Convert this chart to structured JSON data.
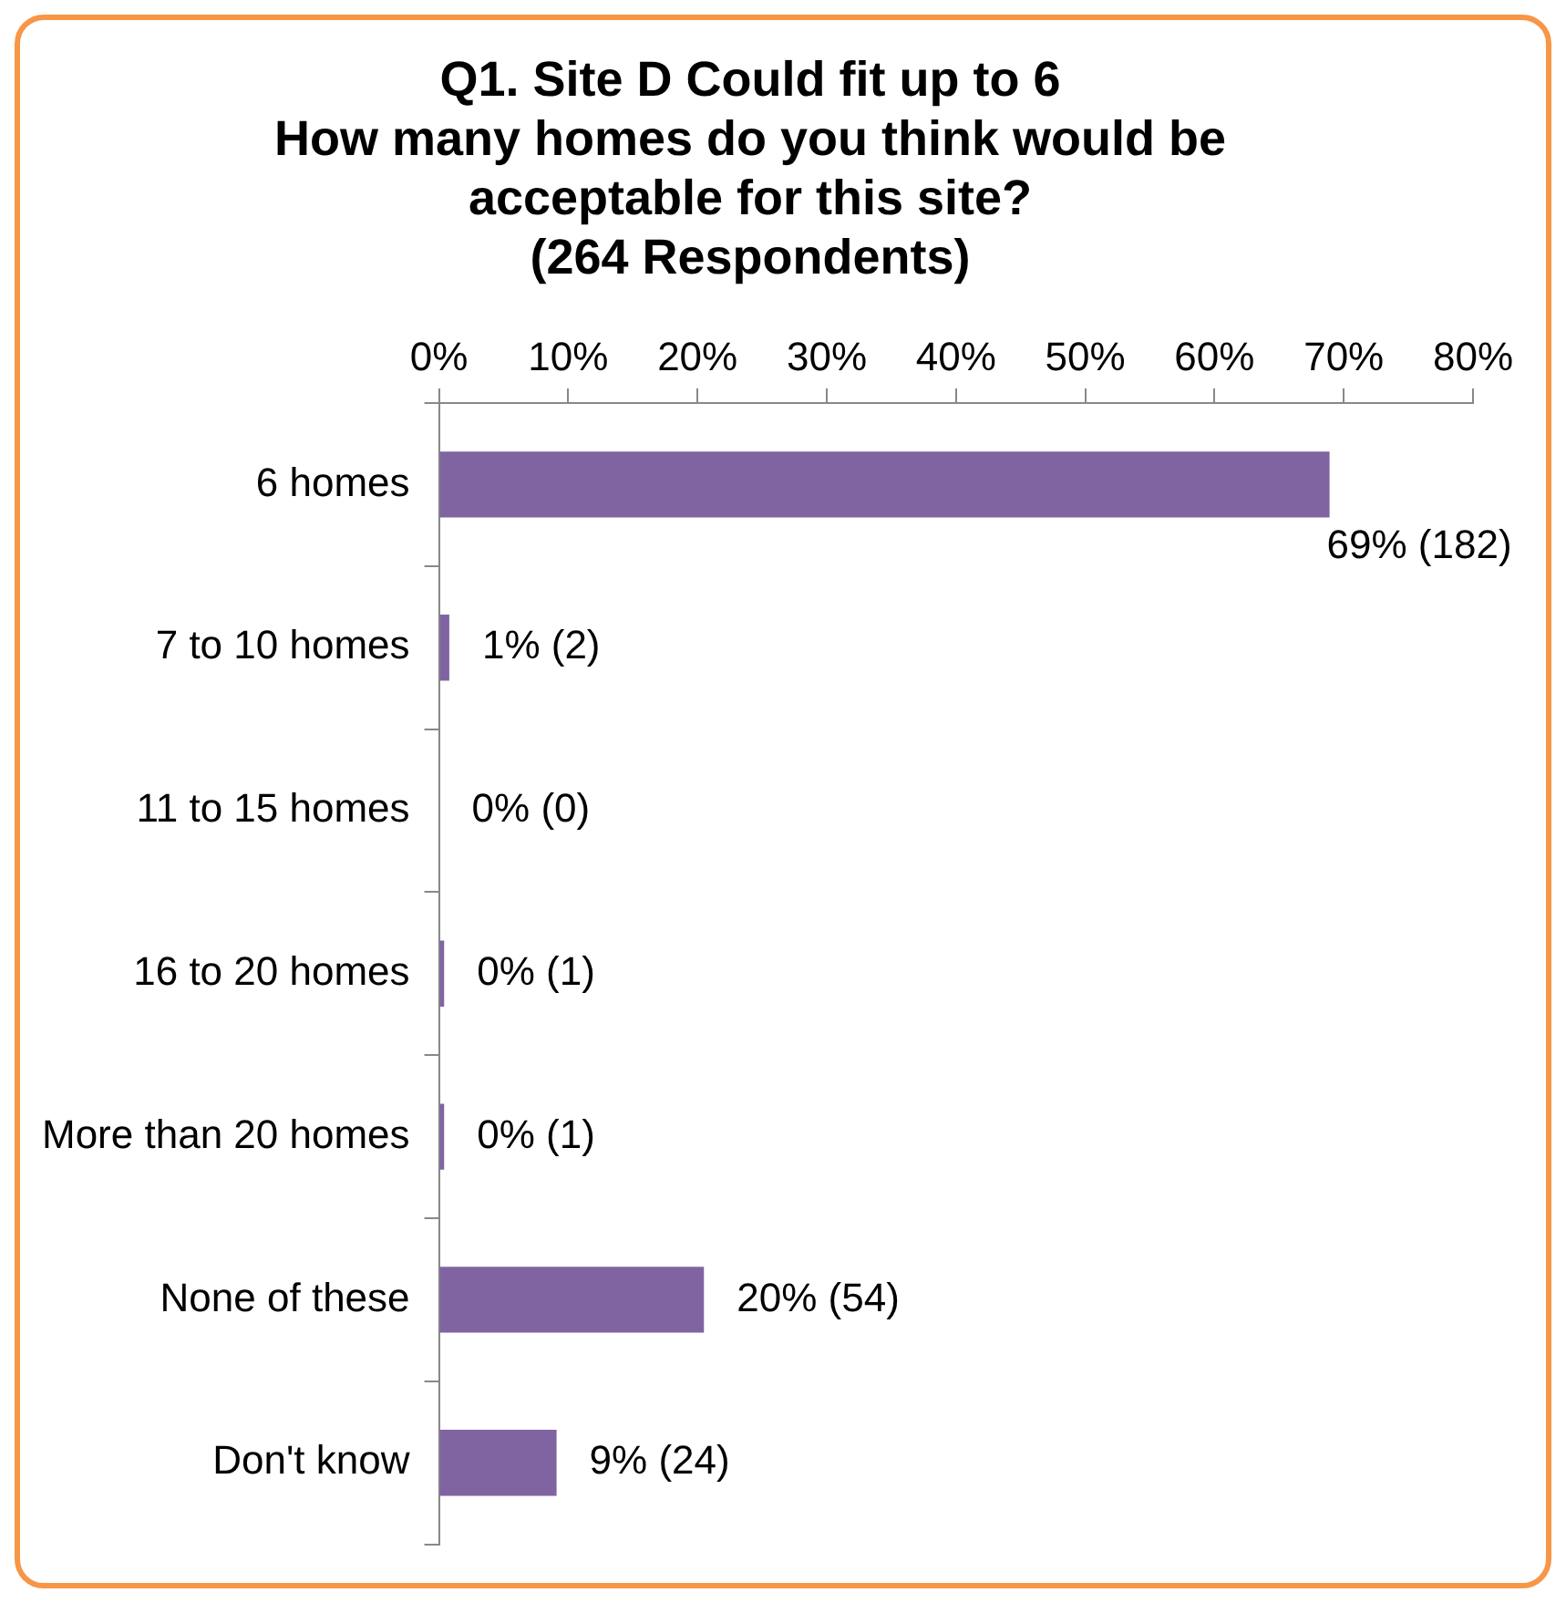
{
  "chart_data": {
    "type": "bar",
    "orientation": "horizontal",
    "title": "Q1. Site D Could fit up to 6\nHow many homes do you think would be\nacceptable for this site?\n(264 Respondents)",
    "categories": [
      "6 homes",
      "7 to 10 homes",
      "11 to 15 homes",
      "16 to 20 homes",
      "More than 20 homes",
      "None of these",
      "Don't know"
    ],
    "values": [
      68.9,
      0.8,
      0,
      0.4,
      0.4,
      20.5,
      9.1
    ],
    "value_labels": [
      "69% (182)",
      "1% (2)",
      "0% (0)",
      "0% (1)",
      "0% (1)",
      "20% (54)",
      "9% (24)"
    ],
    "color": "#8064a2",
    "xlim": [
      0,
      80
    ],
    "xticks": [
      {
        "value": 0,
        "label": "0%"
      },
      {
        "value": 10,
        "label": "10%"
      },
      {
        "value": 20,
        "label": "20%"
      },
      {
        "value": 30,
        "label": "30%"
      },
      {
        "value": 40,
        "label": "40%"
      },
      {
        "value": 50,
        "label": "50%"
      },
      {
        "value": 60,
        "label": "60%"
      },
      {
        "value": 70,
        "label": "70%"
      },
      {
        "value": 80,
        "label": "80%"
      }
    ],
    "grid": false,
    "legend": false
  }
}
